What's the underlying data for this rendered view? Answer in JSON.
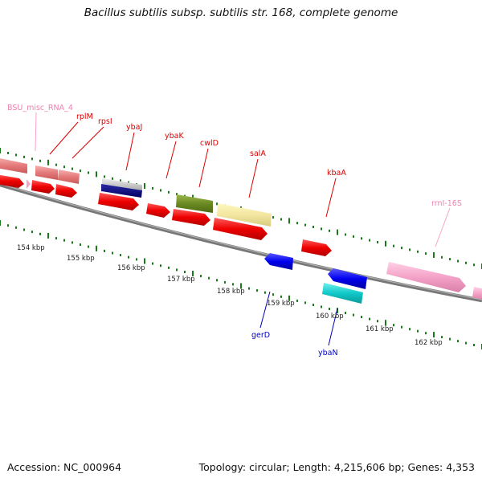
{
  "title": "Bacillus subtilis subsp. subtilis str. 168, complete genome",
  "footer": {
    "accession": "Accession: NC_000964",
    "stats": "Topology: circular; Length: 4,215,606 bp; Genes: 4,353"
  },
  "colors": {
    "cds": "#ee1111",
    "cds_light": "#e88080",
    "rna": "#f0a0c8",
    "tick": "#1a7a1a",
    "backbone": "#888888",
    "forward_label": "#dd0000",
    "reverse_label": "#0000bb",
    "rna_label": "#f080b0"
  },
  "scale": {
    "unit": "kbp",
    "labels": [
      "154 kbp",
      "155 kbp",
      "156 kbp",
      "157 kbp",
      "158 kbp",
      "159 kbp",
      "160 kbp",
      "161 kbp",
      "162 kbp"
    ]
  },
  "feature_labels": {
    "forward": [
      "BSU_misc_RNA_4",
      "rplM",
      "rpsI",
      "ybaJ",
      "ybaK",
      "cwlD",
      "salA",
      "kbaA",
      "rrnI-16S"
    ],
    "reverse": [
      "gerD",
      "ybaN"
    ]
  }
}
